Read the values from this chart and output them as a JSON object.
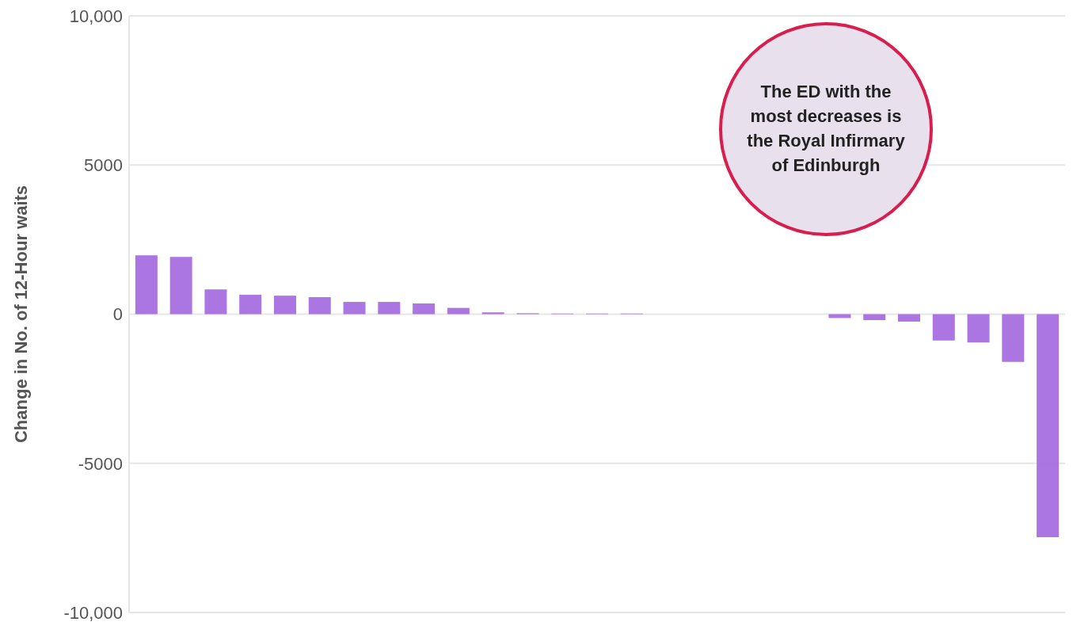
{
  "chart_data": {
    "type": "bar",
    "ylabel": "Change in No. of 12-Hour waits",
    "categories": [
      null,
      null,
      null,
      null,
      null,
      null,
      null,
      null,
      null,
      null,
      null,
      null,
      null,
      null,
      null,
      null,
      null,
      null,
      null,
      null,
      null,
      null,
      null,
      null,
      null,
      null,
      null
    ],
    "values": [
      1970,
      1920,
      830,
      650,
      620,
      570,
      410,
      410,
      360,
      210,
      60,
      30,
      20,
      20,
      20,
      null,
      0,
      0,
      null,
      null,
      -130,
      -200,
      -250,
      -880,
      -950,
      -1600,
      -7480
    ],
    "color": "#a66ee0",
    "ylim": [
      -10000,
      10000
    ],
    "yticks": [
      {
        "value": -10000,
        "label": "-10,000"
      },
      -5000,
      0,
      5000,
      {
        "value": 10000,
        "label": "10,000"
      }
    ],
    "grid": "y",
    "annotations": [
      "The ED with the most decreases is the Royal Infirmary of Edinburgh"
    ]
  }
}
